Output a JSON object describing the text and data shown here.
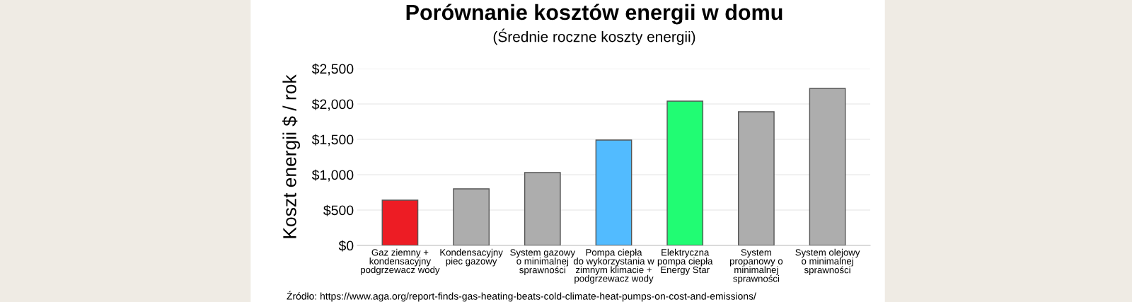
{
  "chart_data": {
    "type": "bar",
    "title": "Porównanie kosztów energii w domu",
    "subtitle": "(Średnie roczne koszty energii)",
    "ylabel": "Koszt energii $ / rok",
    "categories": [
      "Gaz ziemny +\nkondensacyjny\npodgrzewacz wody",
      "Kondensacyjny\npiec gazowy",
      "System gazowy\no minimalnej\nsprawności",
      "Pompa ciepła\ndo wykorzystania w\nzimnym klimacie +\npodgrzewacz wody",
      "Elektryczna\npompa ciepła\nEnergy Star",
      "System\npropanowy o\nminimalnej\nsprawności",
      "System olejowy\no minimalnej\nsprawności"
    ],
    "values": [
      640,
      800,
      1030,
      1490,
      2040,
      1890,
      2220
    ],
    "colors": [
      "#ed1c24",
      "#adadad",
      "#adadad",
      "#52bbff",
      "#21fc73",
      "#adadad",
      "#adadad"
    ],
    "ylim": [
      0,
      2500
    ],
    "yticks": [
      {
        "value": 0,
        "label": "$0"
      },
      {
        "value": 500,
        "label": "$500"
      },
      {
        "value": 1000,
        "label": "$1,000"
      },
      {
        "value": 1500,
        "label": "$1,500"
      },
      {
        "value": 2000,
        "label": "$2,000"
      },
      {
        "value": 2500,
        "label": "$2,500"
      }
    ],
    "grid": "y",
    "annotations": [
      "Źródło: https://www.aga.org/report-finds-gas-heating-beats-cold-climate-heat-pumps-on-cost-and-emissions/"
    ]
  }
}
